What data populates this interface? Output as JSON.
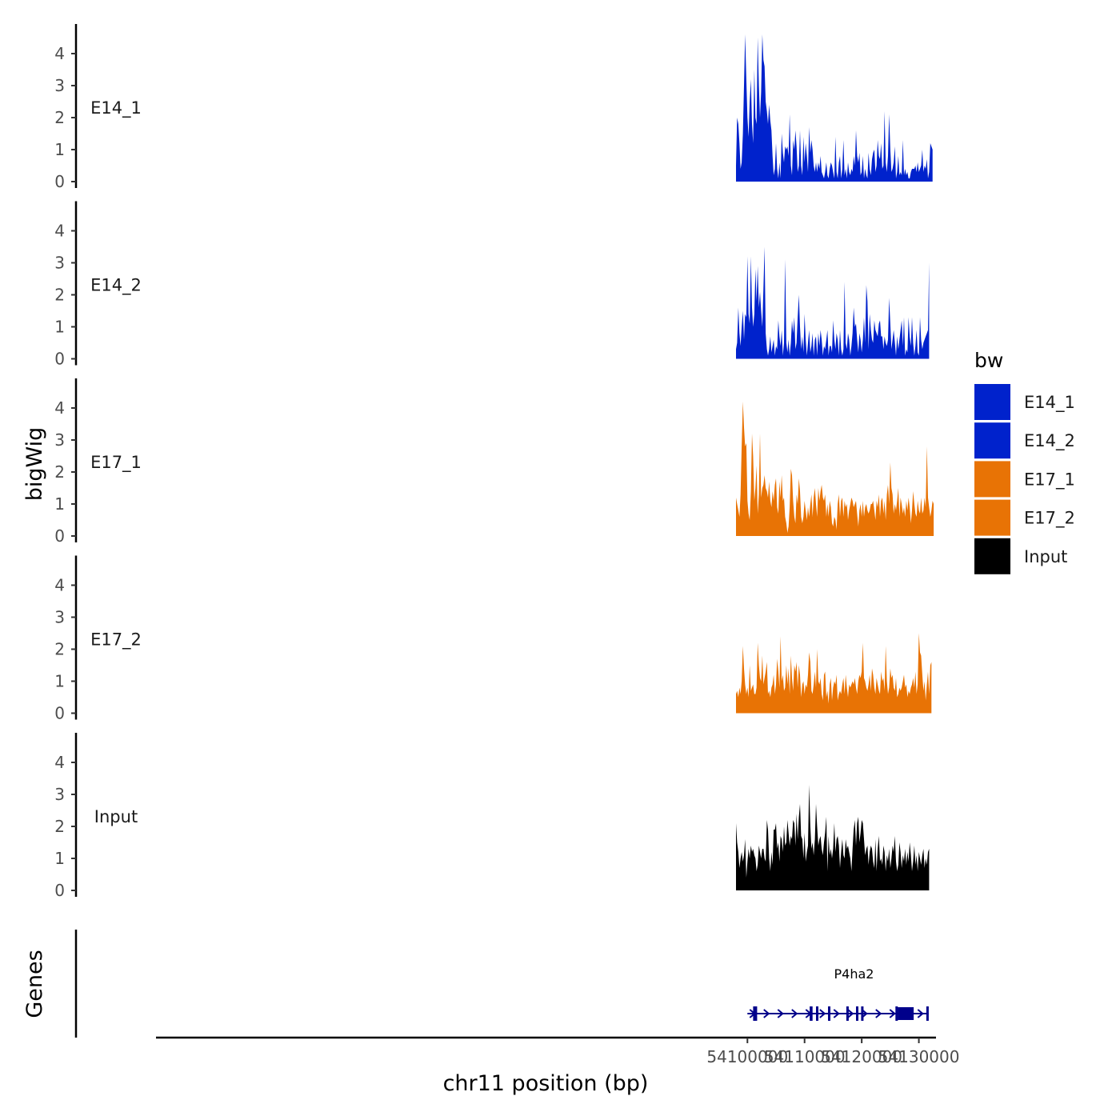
{
  "chart_data": {
    "type": "area",
    "chromosome": "chr11",
    "xlabel": "chr11 position (bp)",
    "ylabel": "bigWig",
    "genes_label": "Genes",
    "xlim": [
      53996500,
      54133000
    ],
    "data_range": [
      54098000,
      54131800
    ],
    "xticks": [
      54100000,
      54110000,
      54120000,
      54130000
    ],
    "xtick_labels": [
      "54100000",
      "54110000",
      "54120000",
      "54130000"
    ],
    "ylim": [
      0,
      4.9
    ],
    "yticks": [
      0,
      1,
      2,
      3,
      4
    ],
    "ytick_labels": [
      "0",
      "1",
      "2",
      "3",
      "4"
    ],
    "legend": {
      "title": "bw",
      "entries": [
        {
          "label": "E14_1",
          "color": "#0022cc"
        },
        {
          "label": "E14_2",
          "color": "#0022cc"
        },
        {
          "label": "E17_1",
          "color": "#e87305"
        },
        {
          "label": "E17_2",
          "color": "#e87305"
        },
        {
          "label": "Input",
          "color": "#000000"
        }
      ]
    },
    "series": [
      {
        "name": "E14_1",
        "color": "#0022cc",
        "x_start": 54098000,
        "x_step": 200,
        "values": [
          0.5,
          2.0,
          1.8,
          1.2,
          0.4,
          0.6,
          1.5,
          3.0,
          4.6,
          3.2,
          2.0,
          1.4,
          2.5,
          3.2,
          1.8,
          1.2,
          3.5,
          2.0,
          1.8,
          4.5,
          3.0,
          2.0,
          2.8,
          4.6,
          3.8,
          3.6,
          2.5,
          2.2,
          1.8,
          2.4,
          1.9,
          1.6,
          0.8,
          0.2,
          0.4,
          1.2,
          0.4,
          0.1,
          0.6,
          0.1,
          1.5,
          0.9,
          0.6,
          1.1,
          1.0,
          1.1,
          0.8,
          2.1,
          0.5,
          0.2,
          1.3,
          1.0,
          1.6,
          1.1,
          0.3,
          0.5,
          1.6,
          0.5,
          0.2,
          1.4,
          0.6,
          1.2,
          0.8,
          0.3,
          1.7,
          0.9,
          1.3,
          1.0,
          0.5,
          0.3,
          0.6,
          0.3,
          0.6,
          0.4,
          0.8,
          0.3,
          0.2,
          0.1,
          0.3,
          0.6,
          0.2,
          0.1,
          0.4,
          0.6,
          0.5,
          0.3,
          0.1,
          1.4,
          0.3,
          0.1,
          0.6,
          0.8,
          0.1,
          0.4,
          1.3,
          0.2,
          0.4,
          0.1,
          0.6,
          0.3,
          0.2,
          0.4,
          0.3,
          0.8,
          0.5,
          1.6,
          0.8,
          0.6,
          0.9,
          0.2,
          0.3,
          0.8,
          0.1,
          0.4,
          0.2,
          0.1,
          0.9,
          0.4,
          0.2,
          0.7,
          0.9,
          1.0,
          0.3,
          0.5,
          1.3,
          0.8,
          0.7,
          1.2,
          0.4,
          0.5,
          2.2,
          0.6,
          0.3,
          0.8,
          2.1,
          1.0,
          0.3,
          0.4,
          0.6,
          1.1,
          0.1,
          0.3,
          0.8,
          0.2,
          0.3,
          0.2,
          1.3,
          0.2,
          0.4,
          0.2,
          0.3,
          0.1,
          0.1,
          0.3,
          0.4,
          0.4,
          0.4,
          0.5,
          0.3,
          0.6,
          0.3,
          0.4,
          0.5,
          1.0,
          0.3,
          0.5,
          0.4,
          0.7,
          0.1,
          0.3,
          1.2,
          1.1,
          1.0
        ]
      },
      {
        "name": "E14_2",
        "color": "#0022cc",
        "x_start": 54098000,
        "x_step": 200,
        "values": [
          0.3,
          0.5,
          1.6,
          0.8,
          0.4,
          1.0,
          1.5,
          0.6,
          1.4,
          1.3,
          3.2,
          1.4,
          1.1,
          3.2,
          1.6,
          1.0,
          1.4,
          2.8,
          1.8,
          2.9,
          1.6,
          2.1,
          1.5,
          1.0,
          2.2,
          3.5,
          0.8,
          0.3,
          0.1,
          0.3,
          0.7,
          0.2,
          0.4,
          0.6,
          0.1,
          0.4,
          0.3,
          1.2,
          0.7,
          0.4,
          0.9,
          0.1,
          0.5,
          3.1,
          0.5,
          0.2,
          0.6,
          0.1,
          0.5,
          1.2,
          0.8,
          1.3,
          0.3,
          0.5,
          1.3,
          2.0,
          1.0,
          0.3,
          0.7,
          0.2,
          1.4,
          0.6,
          0.1,
          0.5,
          0.9,
          0.2,
          0.4,
          0.8,
          0.1,
          0.6,
          0.7,
          0.1,
          0.8,
          0.4,
          0.9,
          0.6,
          0.1,
          0.4,
          0.3,
          0.6,
          0.9,
          0.1,
          0.4,
          0.4,
          0.2,
          1.2,
          0.6,
          0.3,
          0.8,
          0.6,
          0.1,
          0.9,
          0.3,
          0.1,
          0.3,
          2.4,
          0.5,
          0.3,
          0.8,
          0.6,
          0.1,
          0.4,
          0.8,
          1.6,
          1.0,
          1.1,
          0.6,
          0.2,
          0.8,
          0.6,
          0.2,
          0.6,
          1.3,
          0.5,
          2.3,
          1.8,
          0.3,
          1.4,
          0.9,
          0.6,
          0.5,
          1.2,
          0.9,
          0.8,
          0.7,
          1.1,
          1.2,
          0.7,
          0.7,
          0.3,
          0.7,
          0.5,
          0.4,
          0.6,
          1.9,
          1.1,
          0.3,
          0.6,
          0.9,
          0.5,
          0.1,
          0.7,
          0.3,
          0.6,
          0.9,
          1.2,
          0.4,
          1.3,
          0.1,
          0.3,
          0.2,
          1.3,
          0.7,
          0.4,
          1.3,
          0.5,
          0.1,
          0.4,
          0.9,
          0.2,
          0.1,
          1.3,
          0.6,
          0.3,
          0.5,
          0.6,
          0.7,
          0.8,
          0.9,
          3.0
        ]
      },
      {
        "name": "E17_1",
        "color": "#e87305",
        "x_start": 54098000,
        "x_step": 200,
        "values": [
          1.2,
          1.0,
          0.8,
          0.6,
          1.3,
          2.8,
          4.2,
          3.4,
          2.8,
          2.9,
          1.1,
          0.7,
          0.5,
          1.4,
          3.2,
          2.5,
          1.1,
          1.5,
          2.2,
          0.7,
          1.3,
          3.2,
          1.2,
          1.5,
          1.6,
          1.9,
          1.5,
          1.4,
          1.2,
          1.7,
          1.1,
          0.9,
          1.4,
          1.1,
          1.6,
          1.8,
          0.9,
          0.7,
          1.7,
          1.2,
          1.9,
          1.1,
          1.2,
          0.6,
          0.4,
          0.1,
          0.3,
          0.9,
          2.1,
          1.9,
          1.1,
          0.6,
          0.4,
          1.3,
          1.0,
          1.8,
          1.4,
          0.6,
          0.4,
          0.6,
          1.1,
          0.8,
          0.5,
          0.9,
          0.6,
          1.0,
          1.3,
          0.6,
          1.2,
          1.5,
          1.0,
          0.6,
          1.5,
          1.1,
          1.4,
          1.6,
          1.2,
          1.1,
          1.3,
          0.6,
          1.0,
          0.6,
          1.1,
          0.9,
          0.4,
          0.3,
          0.6,
          0.5,
          0.2,
          1.0,
          1.3,
          0.6,
          1.1,
          1.2,
          0.6,
          1.1,
          0.9,
          1.0,
          0.5,
          0.8,
          1.0,
          1.2,
          1.1,
          0.9,
          1.0,
          1.1,
          0.7,
          0.3,
          0.8,
          1.0,
          0.6,
          1.1,
          0.6,
          0.9,
          1.0,
          0.8,
          0.7,
          0.8,
          1.0,
          1.0,
          1.1,
          0.8,
          0.5,
          1.1,
          0.9,
          1.3,
          0.6,
          1.1,
          1.2,
          0.7,
          1.1,
          0.5,
          1.3,
          1.6,
          1.0,
          2.3,
          1.5,
          1.3,
          0.7,
          1.0,
          0.8,
          1.1,
          1.5,
          0.6,
          1.2,
          1.0,
          0.7,
          0.9,
          0.6,
          1.1,
          0.8,
          1.2,
          0.9,
          0.4,
          0.8,
          1.4,
          1.0,
          0.7,
          0.6,
          1.1,
          0.8,
          0.7,
          1.2,
          0.7,
          0.8,
          1.2,
          0.9,
          2.8,
          1.2,
          0.9,
          0.6,
          0.8,
          1.1,
          1.0
        ]
      },
      {
        "name": "E17_2",
        "color": "#e87305",
        "x_start": 54098000,
        "x_step": 200,
        "values": [
          0.6,
          0.7,
          0.5,
          0.8,
          0.6,
          1.0,
          2.1,
          1.4,
          0.9,
          0.6,
          0.8,
          0.5,
          1.5,
          0.7,
          0.8,
          0.9,
          0.6,
          0.6,
          0.8,
          2.2,
          1.5,
          1.1,
          1.0,
          1.8,
          0.9,
          1.1,
          1.3,
          1.6,
          0.6,
          0.7,
          0.5,
          0.8,
          0.9,
          1.2,
          0.6,
          0.9,
          1.7,
          1.3,
          0.8,
          2.4,
          1.0,
          1.2,
          0.7,
          0.8,
          1.5,
          0.9,
          1.4,
          0.6,
          1.8,
          1.1,
          0.7,
          1.5,
          1.3,
          1.6,
          0.8,
          1.5,
          1.2,
          0.5,
          0.9,
          1.0,
          0.6,
          0.9,
          0.8,
          1.2,
          1.9,
          1.6,
          0.7,
          0.6,
          0.9,
          1.3,
          0.8,
          2.0,
          1.0,
          0.9,
          1.1,
          0.6,
          0.4,
          1.2,
          1.3,
          0.5,
          0.7,
          0.3,
          0.9,
          1.1,
          0.4,
          0.8,
          1.0,
          0.9,
          1.2,
          0.4,
          0.6,
          0.7,
          0.6,
          0.9,
          1.1,
          0.6,
          1.2,
          0.8,
          0.5,
          0.9,
          0.8,
          0.9,
          1.0,
          0.9,
          1.1,
          0.8,
          0.6,
          1.0,
          1.2,
          1.1,
          1.3,
          2.2,
          1.1,
          1.0,
          0.8,
          0.7,
          0.9,
          1.2,
          0.7,
          1.4,
          1.2,
          0.8,
          0.6,
          1.1,
          0.9,
          0.7,
          0.6,
          1.3,
          1.0,
          1.1,
          0.7,
          2.1,
          1.0,
          0.6,
          0.8,
          1.4,
          1.1,
          1.2,
          0.8,
          0.7,
          1.1,
          0.5,
          0.6,
          0.8,
          0.7,
          0.8,
          1.0,
          1.2,
          0.8,
          0.9,
          0.5,
          0.7,
          0.6,
          0.8,
          0.9,
          1.1,
          0.8,
          1.3,
          0.6,
          0.9,
          2.5,
          1.9,
          1.8,
          1.2,
          0.7,
          1.0,
          0.4,
          0.9,
          1.3,
          0.6,
          1.5,
          1.6
        ]
      },
      {
        "name": "Input",
        "color": "#000000",
        "x_start": 54098000,
        "x_step": 200,
        "values": [
          2.1,
          1.5,
          1.2,
          0.7,
          1.0,
          1.2,
          0.9,
          1.1,
          1.6,
          0.4,
          0.9,
          1.3,
          1.0,
          1.4,
          1.2,
          1.3,
          1.1,
          1.0,
          0.6,
          0.8,
          1.4,
          1.2,
          1.0,
          1.3,
          1.3,
          1.0,
          0.9,
          2.2,
          1.9,
          1.0,
          0.6,
          1.2,
          0.8,
          1.9,
          1.9,
          2.1,
          1.3,
          1.5,
          0.9,
          1.7,
          1.6,
          1.2,
          2.0,
          1.4,
          1.5,
          2.2,
          1.8,
          1.4,
          1.7,
          1.6,
          2.2,
          2.1,
          1.4,
          2.4,
          1.6,
          2.3,
          2.7,
          1.7,
          1.6,
          1.0,
          1.8,
          0.9,
          1.2,
          1.4,
          3.3,
          2.0,
          1.3,
          1.5,
          1.1,
          1.6,
          2.7,
          2.0,
          1.4,
          1.6,
          1.7,
          1.3,
          1.1,
          1.5,
          1.8,
          2.3,
          0.6,
          1.7,
          1.1,
          1.3,
          1.0,
          1.3,
          2.1,
          1.2,
          1.6,
          1.7,
          1.4,
          0.7,
          1.2,
          1.6,
          1.1,
          1.0,
          1.6,
          1.3,
          1.4,
          1.2,
          1.0,
          0.6,
          1.3,
          1.9,
          2.2,
          1.4,
          2.1,
          2.3,
          1.5,
          1.8,
          2.2,
          2.1,
          1.6,
          1.1,
          1.3,
          1.4,
          0.8,
          1.2,
          1.4,
          1.3,
          0.9,
          0.7,
          1.6,
          0.6,
          1.3,
          1.7,
          0.9,
          1.0,
          0.8,
          1.4,
          1.2,
          0.6,
          1.1,
          0.9,
          1.3,
          0.7,
          1.0,
          1.4,
          1.2,
          1.7,
          0.9,
          0.6,
          0.8,
          1.5,
          1.2,
          0.7,
          1.1,
          0.9,
          1.3,
          0.8,
          1.2,
          0.9,
          1.5,
          1.1,
          0.6,
          0.9,
          1.4,
          0.8,
          1.1,
          0.6,
          1.2,
          1.0,
          0.8,
          1.1,
          1.3,
          0.7,
          1.0,
          0.8,
          1.2,
          1.3
        ]
      }
    ],
    "gene": {
      "name": "P4ha2",
      "strand": "+",
      "start": 54100000,
      "end": 54131700,
      "exons": [
        {
          "start": 54101000,
          "end": 54101700,
          "type": "exon"
        },
        {
          "start": 54110900,
          "end": 54111400,
          "type": "exon"
        },
        {
          "start": 54112000,
          "end": 54112200,
          "type": "exon"
        },
        {
          "start": 54114100,
          "end": 54114300,
          "type": "exon"
        },
        {
          "start": 54117300,
          "end": 54117500,
          "type": "exon"
        },
        {
          "start": 54119000,
          "end": 54119200,
          "type": "exon"
        },
        {
          "start": 54119900,
          "end": 54120100,
          "type": "exon"
        },
        {
          "start": 54125900,
          "end": 54126300,
          "type": "exon"
        },
        {
          "start": 54126300,
          "end": 54129100,
          "type": "utr"
        },
        {
          "start": 54131300,
          "end": 54131700,
          "type": "exon"
        }
      ]
    }
  }
}
